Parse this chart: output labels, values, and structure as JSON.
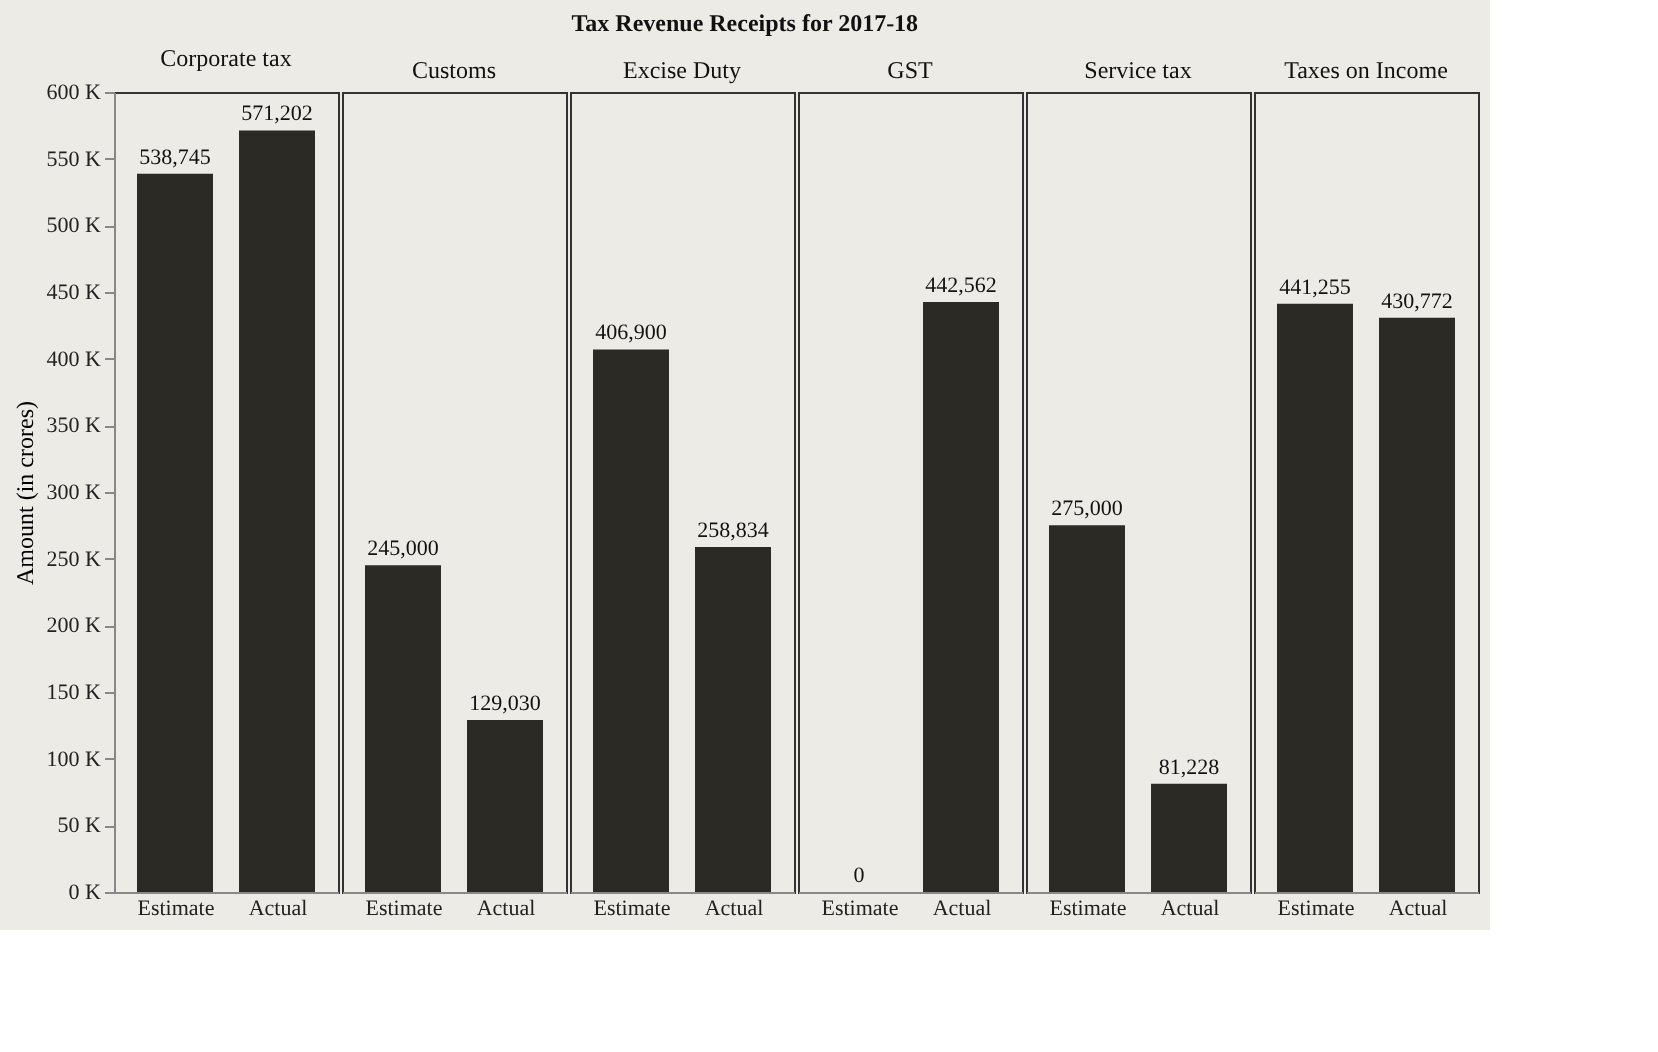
{
  "chart_data": [
    {
      "type": "bar",
      "title": "Corporate tax",
      "annotations": [
        "Tax Revenue Receipts for 2017-18"
      ],
      "ylabel": "Amount (in crores)",
      "categories": [
        "Estimate",
        "Actual"
      ],
      "values": [
        538745,
        571202
      ],
      "value_labels": [
        "538,745",
        "571,202"
      ],
      "color": "#2b2a24",
      "ylim": [
        0,
        600000
      ],
      "yticks": [
        {
          "value": 0,
          "label": "0 K"
        },
        {
          "value": 50000,
          "label": "50 K"
        },
        {
          "value": 100000,
          "label": "100 K"
        },
        {
          "value": 150000,
          "label": "150 K"
        },
        {
          "value": 200000,
          "label": "200 K"
        },
        {
          "value": 250000,
          "label": "250 K"
        },
        {
          "value": 300000,
          "label": "300 K"
        },
        {
          "value": 350000,
          "label": "350 K"
        },
        {
          "value": 400000,
          "label": "400 K"
        },
        {
          "value": 450000,
          "label": "450 K"
        },
        {
          "value": 500000,
          "label": "500 K"
        },
        {
          "value": 550000,
          "label": "550 K"
        },
        {
          "value": 600000,
          "label": "600 K"
        }
      ],
      "grid": false
    },
    {
      "type": "bar",
      "title": "Customs",
      "categories": [
        "Estimate",
        "Actual"
      ],
      "values": [
        245000,
        129030
      ],
      "value_labels": [
        "245,000",
        "129,030"
      ],
      "color": "#2b2a24",
      "ylim": [
        0,
        600000
      ],
      "tick_labels": "x",
      "grid": false
    },
    {
      "type": "bar",
      "title": "Excise Duty",
      "categories": [
        "Estimate",
        "Actual"
      ],
      "values": [
        406900,
        258834
      ],
      "value_labels": [
        "406,900",
        "258,834"
      ],
      "color": "#2b2a24",
      "ylim": [
        0,
        600000
      ],
      "tick_labels": "x",
      "grid": false
    },
    {
      "type": "bar",
      "title": "GST",
      "categories": [
        "Estimate",
        "Actual"
      ],
      "values": [
        0,
        442562
      ],
      "value_labels": [
        "0",
        "442,562"
      ],
      "color": "#2b2a24",
      "ylim": [
        0,
        600000
      ],
      "tick_labels": "x",
      "grid": false
    },
    {
      "type": "bar",
      "title": "Service tax",
      "categories": [
        "Estimate",
        "Actual"
      ],
      "values": [
        275000,
        81228
      ],
      "value_labels": [
        "275,000",
        "81,228"
      ],
      "color": "#2b2a24",
      "ylim": [
        0,
        600000
      ],
      "tick_labels": "x",
      "grid": false
    },
    {
      "type": "bar",
      "title": "Taxes on Income",
      "categories": [
        "Estimate",
        "Actual"
      ],
      "values": [
        441255,
        430772
      ],
      "value_labels": [
        "441,255",
        "430,772"
      ],
      "color": "#2b2a24",
      "ylim": [
        0,
        600000
      ],
      "tick_labels": "x",
      "grid": false
    }
  ]
}
